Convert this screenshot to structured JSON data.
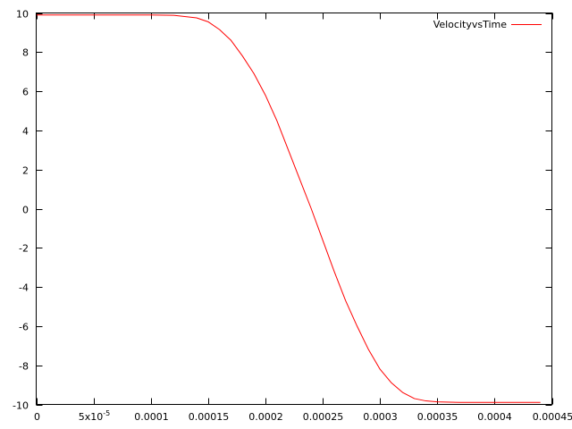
{
  "chart_data": {
    "type": "line",
    "title": "",
    "xlabel": "",
    "ylabel": "",
    "xlim": [
      0,
      0.00045
    ],
    "ylim": [
      -10,
      10
    ],
    "grid": false,
    "legend_position": "top-right",
    "x_ticks": [
      {
        "value": 0,
        "label": "0"
      },
      {
        "value": 5e-05,
        "label": "5x10",
        "exp": "-5"
      },
      {
        "value": 0.0001,
        "label": "0.0001"
      },
      {
        "value": 0.00015,
        "label": "0.00015"
      },
      {
        "value": 0.0002,
        "label": "0.0002"
      },
      {
        "value": 0.00025,
        "label": "0.00025"
      },
      {
        "value": 0.0003,
        "label": "0.0003"
      },
      {
        "value": 0.00035,
        "label": "0.00035"
      },
      {
        "value": 0.0004,
        "label": "0.0004"
      },
      {
        "value": 0.00045,
        "label": "0.00045"
      }
    ],
    "y_ticks": [
      {
        "value": 10,
        "label": "10"
      },
      {
        "value": 8,
        "label": "8"
      },
      {
        "value": 6,
        "label": "6"
      },
      {
        "value": 4,
        "label": "4"
      },
      {
        "value": 2,
        "label": "2"
      },
      {
        "value": 0,
        "label": "0"
      },
      {
        "value": -2,
        "label": "-2"
      },
      {
        "value": -4,
        "label": "-4"
      },
      {
        "value": -6,
        "label": "-6"
      },
      {
        "value": -8,
        "label": "-8"
      },
      {
        "value": -10,
        "label": "-10"
      }
    ],
    "series": [
      {
        "name": "VelocityvsTime",
        "color": "#ff0000",
        "points": [
          [
            0,
            9.9
          ],
          [
            5e-05,
            9.9
          ],
          [
            0.0001,
            9.9
          ],
          [
            0.00012,
            9.88
          ],
          [
            0.00014,
            9.75
          ],
          [
            0.00015,
            9.55
          ],
          [
            0.00016,
            9.15
          ],
          [
            0.00017,
            8.6
          ],
          [
            0.00018,
            7.8
          ],
          [
            0.00019,
            6.9
          ],
          [
            0.0002,
            5.8
          ],
          [
            0.00021,
            4.5
          ],
          [
            0.00022,
            3.0
          ],
          [
            0.00023,
            1.5
          ],
          [
            0.00024,
            0.0
          ],
          [
            0.00025,
            -1.6
          ],
          [
            0.00026,
            -3.2
          ],
          [
            0.00027,
            -4.7
          ],
          [
            0.00028,
            -6.0
          ],
          [
            0.00029,
            -7.2
          ],
          [
            0.0003,
            -8.2
          ],
          [
            0.00031,
            -8.9
          ],
          [
            0.00032,
            -9.4
          ],
          [
            0.00033,
            -9.7
          ],
          [
            0.00034,
            -9.82
          ],
          [
            0.00035,
            -9.87
          ],
          [
            0.00037,
            -9.9
          ],
          [
            0.0004,
            -9.9
          ],
          [
            0.00044,
            -9.9
          ]
        ]
      }
    ]
  }
}
